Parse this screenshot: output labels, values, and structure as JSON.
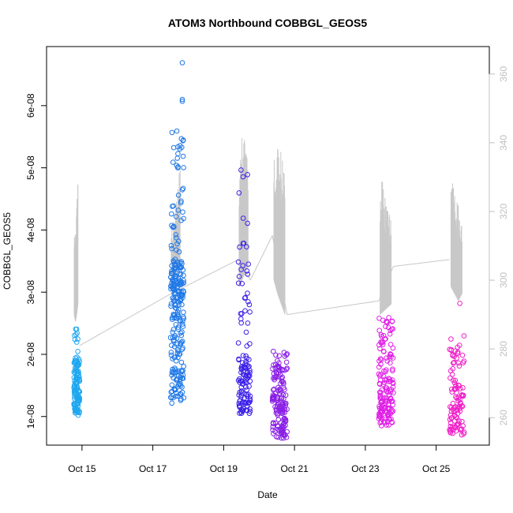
{
  "chart_data": {
    "type": "scatter",
    "title": "ATOM3 Northbound COBBGL_GEOS5",
    "xlabel": "Date",
    "ylabel": "COBBGL_GEOS5",
    "xlim": [
      "2016-10-14T00:00",
      "2016-10-26T12:00"
    ],
    "ylim": [
      5.4e-09,
      6.95e-08
    ],
    "y2lim": [
      252,
      368
    ],
    "x_ticks": [
      {
        "date": "2016-10-15",
        "label": "Oct 15"
      },
      {
        "date": "2016-10-17",
        "label": "Oct 17"
      },
      {
        "date": "2016-10-19",
        "label": "Oct 19"
      },
      {
        "date": "2016-10-21",
        "label": "Oct 21"
      },
      {
        "date": "2016-10-23",
        "label": "Oct 23"
      },
      {
        "date": "2016-10-25",
        "label": "Oct 25"
      }
    ],
    "y_ticks": [
      {
        "value": 1e-08,
        "label": "1e-08"
      },
      {
        "value": 2e-08,
        "label": "2e-08"
      },
      {
        "value": 3e-08,
        "label": "3e-08"
      },
      {
        "value": 4e-08,
        "label": "4e-08"
      },
      {
        "value": 5e-08,
        "label": "5e-08"
      },
      {
        "value": 6e-08,
        "label": "6e-08"
      }
    ],
    "y2_ticks": [
      {
        "value": 260,
        "label": "260"
      },
      {
        "value": 280,
        "label": "280"
      },
      {
        "value": 300,
        "label": "300"
      },
      {
        "value": 320,
        "label": "320"
      },
      {
        "value": 340,
        "label": "340"
      },
      {
        "value": 360,
        "label": "360"
      }
    ],
    "grid": false,
    "secondary_line_color": "#c8c8c8",
    "axis_color_right": "#c0c0c0",
    "flights": [
      {
        "color": "#1ea7f0",
        "x_range": [
          "2016-10-14T18:30",
          "2016-10-14T22:30"
        ],
        "clusters": [
          {
            "y_min": 1.02e-08,
            "y_max": 1.9e-08,
            "n": 110
          },
          {
            "y_min": 1.9e-08,
            "y_max": 2.5e-08,
            "n": 12
          }
        ],
        "outliers": [],
        "alt_profile": [
          {
            "x": "2016-10-14T18:45",
            "lo": 290,
            "hi": 313
          },
          {
            "x": "2016-10-14T19:30",
            "lo": 288,
            "hi": 316
          },
          {
            "x": "2016-10-14T20:30",
            "lo": 290,
            "hi": 322
          },
          {
            "x": "2016-10-14T21:15",
            "lo": 293,
            "hi": 332
          }
        ]
      },
      {
        "color": "#1f78e6",
        "x_range": [
          "2016-10-17T12:00",
          "2016-10-17T21:00"
        ],
        "clusters": [
          {
            "y_min": 1.2e-08,
            "y_max": 2.3e-08,
            "n": 80
          },
          {
            "y_min": 2.3e-08,
            "y_max": 3.5e-08,
            "n": 130
          },
          {
            "y_min": 3.5e-08,
            "y_max": 5.6e-08,
            "n": 45
          }
        ],
        "outliers": [
          {
            "x": "2016-10-17T20:00",
            "y": 6.69e-08
          },
          {
            "x": "2016-10-17T20:00",
            "y": 6.07e-08
          },
          {
            "x": "2016-10-17T20:00",
            "y": 6.1e-08
          }
        ],
        "alt_profile": [
          {
            "x": "2016-10-17T12:30",
            "lo": 298,
            "hi": 314
          },
          {
            "x": "2016-10-17T14:30",
            "lo": 300,
            "hi": 318
          },
          {
            "x": "2016-10-17T16:30",
            "lo": 303,
            "hi": 325
          },
          {
            "x": "2016-10-17T18:30",
            "lo": 305,
            "hi": 336
          }
        ]
      },
      {
        "color": "#3b1fe8",
        "x_range": [
          "2016-10-19T10:00",
          "2016-10-19T18:00"
        ],
        "clusters": [
          {
            "y_min": 1.05e-08,
            "y_max": 2e-08,
            "n": 90
          },
          {
            "y_min": 2e-08,
            "y_max": 3.5e-08,
            "n": 25
          },
          {
            "y_min": 3.5e-08,
            "y_max": 5e-08,
            "n": 10
          }
        ],
        "outliers": [],
        "alt_profile": [
          {
            "x": "2016-10-19T10:30",
            "lo": 298,
            "hi": 330
          },
          {
            "x": "2016-10-19T12:30",
            "lo": 300,
            "hi": 344
          },
          {
            "x": "2016-10-19T14:30",
            "lo": 302,
            "hi": 340
          },
          {
            "x": "2016-10-19T16:30",
            "lo": 304,
            "hi": 336
          }
        ]
      },
      {
        "color": "#8a1ee6",
        "x_range": [
          "2016-10-20T09:00",
          "2016-10-20T19:00"
        ],
        "clusters": [
          {
            "y_min": 6.5e-09,
            "y_max": 1.35e-08,
            "n": 95
          },
          {
            "y_min": 1.35e-08,
            "y_max": 2.05e-08,
            "n": 55
          }
        ],
        "outliers": [],
        "alt_profile": [
          {
            "x": "2016-10-20T10:00",
            "lo": 300,
            "hi": 337
          },
          {
            "x": "2016-10-20T12:30",
            "lo": 296,
            "hi": 340
          },
          {
            "x": "2016-10-20T15:00",
            "lo": 293,
            "hi": 338
          },
          {
            "x": "2016-10-20T17:30",
            "lo": 290,
            "hi": 336
          }
        ]
      },
      {
        "color": "#e01ee6",
        "x_range": [
          "2016-10-23T09:00",
          "2016-10-23T19:00"
        ],
        "clusters": [
          {
            "y_min": 8.5e-09,
            "y_max": 1.6e-08,
            "n": 100
          },
          {
            "y_min": 1.6e-08,
            "y_max": 2.6e-08,
            "n": 55
          }
        ],
        "outliers": [],
        "alt_profile": [
          {
            "x": "2016-10-23T10:00",
            "lo": 290,
            "hi": 331
          },
          {
            "x": "2016-10-23T12:30",
            "lo": 291,
            "hi": 328
          },
          {
            "x": "2016-10-23T15:00",
            "lo": 292,
            "hi": 322
          },
          {
            "x": "2016-10-23T17:30",
            "lo": 293,
            "hi": 318
          }
        ]
      },
      {
        "color": "#f01ec8",
        "x_range": [
          "2016-10-25T09:00",
          "2016-10-25T19:00"
        ],
        "clusters": [
          {
            "y_min": 7e-09,
            "y_max": 1.5e-08,
            "n": 75
          },
          {
            "y_min": 1.5e-08,
            "y_max": 2.3e-08,
            "n": 30
          }
        ],
        "outliers": [
          {
            "x": "2016-10-25T16:00",
            "y": 2.82e-08
          }
        ],
        "alt_profile": [
          {
            "x": "2016-10-25T10:00",
            "lo": 298,
            "hi": 332
          },
          {
            "x": "2016-10-25T12:30",
            "lo": 296,
            "hi": 326
          },
          {
            "x": "2016-10-25T15:00",
            "lo": 294,
            "hi": 322
          },
          {
            "x": "2016-10-25T17:30",
            "lo": 296,
            "hi": 318
          }
        ]
      }
    ],
    "transit_line": [
      {
        "x": "2016-10-14T22:30",
        "alt": 281
      },
      {
        "x": "2016-10-17T12:00",
        "alt": 296
      },
      {
        "x": "2016-10-19T10:00",
        "alt": 306
      },
      {
        "x": "2016-10-19T18:00",
        "alt": 300
      },
      {
        "x": "2016-10-20T09:00",
        "alt": 313
      },
      {
        "x": "2016-10-20T19:00",
        "alt": 290
      },
      {
        "x": "2016-10-23T09:00",
        "alt": 294
      },
      {
        "x": "2016-10-23T19:00",
        "alt": 304
      },
      {
        "x": "2016-10-25T09:00",
        "alt": 306
      }
    ]
  }
}
